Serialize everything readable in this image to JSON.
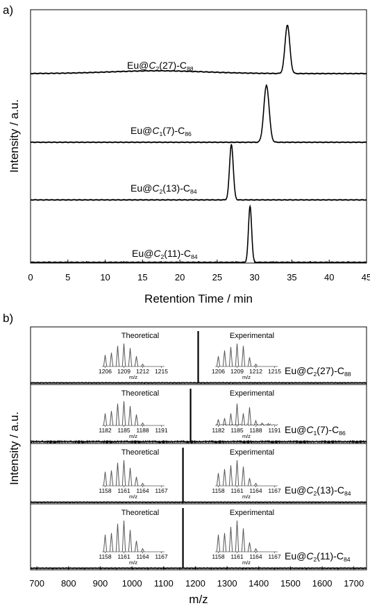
{
  "chart_data": [
    {
      "panel_label": "a)",
      "type": "line",
      "xlabel": "Retention Time / min",
      "ylabel": "Intensity / a.u.",
      "xlim": [
        0,
        45
      ],
      "x_ticks": [
        0,
        5,
        10,
        15,
        20,
        25,
        30,
        35,
        40,
        45
      ],
      "grid": false,
      "traces": [
        {
          "compound": {
            "pre": "Eu@",
            "sym": "C",
            "sub1": "2",
            "mid": "(27)-C",
            "sub2": "88"
          },
          "peak_time": 34.4,
          "peak_width": 0.45,
          "peak_height": 1.0
        },
        {
          "compound": {
            "pre": "Eu@",
            "sym": "C",
            "sub1": "1",
            "mid": "(7)-C",
            "sub2": "86"
          },
          "peak_time": 31.6,
          "peak_width": 0.5,
          "peak_height": 1.0
        },
        {
          "compound": {
            "pre": "Eu@",
            "sym": "C",
            "sub1": "2",
            "mid": "(13)-C",
            "sub2": "84"
          },
          "peak_time": 26.9,
          "peak_width": 0.35,
          "peak_height": 1.0
        },
        {
          "compound": {
            "pre": "Eu@",
            "sym": "C",
            "sub1": "2",
            "mid": "(11)-C",
            "sub2": "84"
          },
          "peak_time": 29.4,
          "peak_width": 0.3,
          "peak_height": 1.0
        }
      ]
    },
    {
      "panel_label": "b)",
      "type": "line",
      "xlabel": "m/z",
      "ylabel": "Intensity / a.u.",
      "xlim": [
        680,
        1740
      ],
      "x_ticks": [
        700,
        800,
        900,
        1000,
        1100,
        1200,
        1300,
        1400,
        1500,
        1600,
        1700
      ],
      "grid": false,
      "panels": [
        {
          "compound": {
            "pre": "Eu@",
            "sym": "C",
            "sub1": "2",
            "mid": "(27)-C",
            "sub2": "88"
          },
          "main_peak_mz": 1208.9,
          "theoretical": {
            "label": "Theoretical",
            "ticks": [
              1206,
              1209,
              1212,
              1215
            ],
            "peaks": [
              1206,
              1207,
              1208,
              1209,
              1210,
              1211,
              1212
            ],
            "rel": [
              0.5,
              0.6,
              0.9,
              1.0,
              0.8,
              0.45,
              0.1
            ]
          },
          "experimental": {
            "label": "Experimental",
            "ticks": [
              1206,
              1209,
              1212,
              1215
            ],
            "peaks": [
              1206,
              1207,
              1208,
              1209,
              1210,
              1211,
              1212
            ],
            "rel": [
              0.45,
              0.7,
              0.85,
              1.0,
              0.9,
              0.4,
              0.1
            ]
          }
        },
        {
          "compound": {
            "pre": "Eu@",
            "sym": "C",
            "sub1": "1",
            "mid": "(7)-C",
            "sub2": "86"
          },
          "main_peak_mz": 1184.9,
          "theoretical": {
            "label": "Theoretical",
            "ticks": [
              1182,
              1185,
              1188,
              1191
            ],
            "peaks": [
              1182,
              1183,
              1184,
              1185,
              1186,
              1187,
              1188
            ],
            "rel": [
              0.5,
              0.6,
              0.9,
              1.0,
              0.8,
              0.45,
              0.1
            ]
          },
          "experimental": {
            "label": "Experimental",
            "ticks": [
              1182,
              1185,
              1188,
              1191
            ],
            "peaks": [
              1182,
              1183,
              1184,
              1185,
              1186,
              1187,
              1188,
              1189,
              1190
            ],
            "rel": [
              0.25,
              0.3,
              0.5,
              0.9,
              0.5,
              0.75,
              0.2,
              0.1,
              0.08
            ]
          }
        },
        {
          "compound": {
            "pre": "Eu@",
            "sym": "C",
            "sub1": "2",
            "mid": "(13)-C",
            "sub2": "84"
          },
          "main_peak_mz": 1160.9,
          "theoretical": {
            "label": "Theoretical",
            "ticks": [
              1158,
              1161,
              1164,
              1167
            ],
            "peaks": [
              1158,
              1159,
              1160,
              1161,
              1162,
              1163,
              1164
            ],
            "rel": [
              0.55,
              0.6,
              0.9,
              1.0,
              0.7,
              0.35,
              0.1
            ]
          },
          "experimental": {
            "label": "Experimental",
            "ticks": [
              1158,
              1161,
              1164,
              1167
            ],
            "peaks": [
              1158,
              1159,
              1160,
              1161,
              1162,
              1163,
              1164
            ],
            "rel": [
              0.5,
              0.65,
              0.8,
              1.0,
              0.75,
              0.3,
              0.1
            ]
          }
        },
        {
          "compound": {
            "pre": "Eu@",
            "sym": "C",
            "sub1": "2",
            "mid": "(11)-C",
            "sub2": "84"
          },
          "main_peak_mz": 1160.9,
          "theoretical": {
            "label": "Theoretical",
            "ticks": [
              1158,
              1161,
              1164,
              1167
            ],
            "peaks": [
              1158,
              1159,
              1160,
              1161,
              1162,
              1163,
              1164
            ],
            "rel": [
              0.55,
              0.6,
              0.9,
              1.0,
              0.7,
              0.35,
              0.1
            ]
          },
          "experimental": {
            "label": "Experimental",
            "ticks": [
              1158,
              1161,
              1164,
              1167
            ],
            "peaks": [
              1158,
              1159,
              1160,
              1161,
              1162,
              1163,
              1164
            ],
            "rel": [
              0.55,
              0.6,
              0.8,
              1.0,
              0.75,
              0.3,
              0.1
            ]
          }
        }
      ]
    }
  ]
}
